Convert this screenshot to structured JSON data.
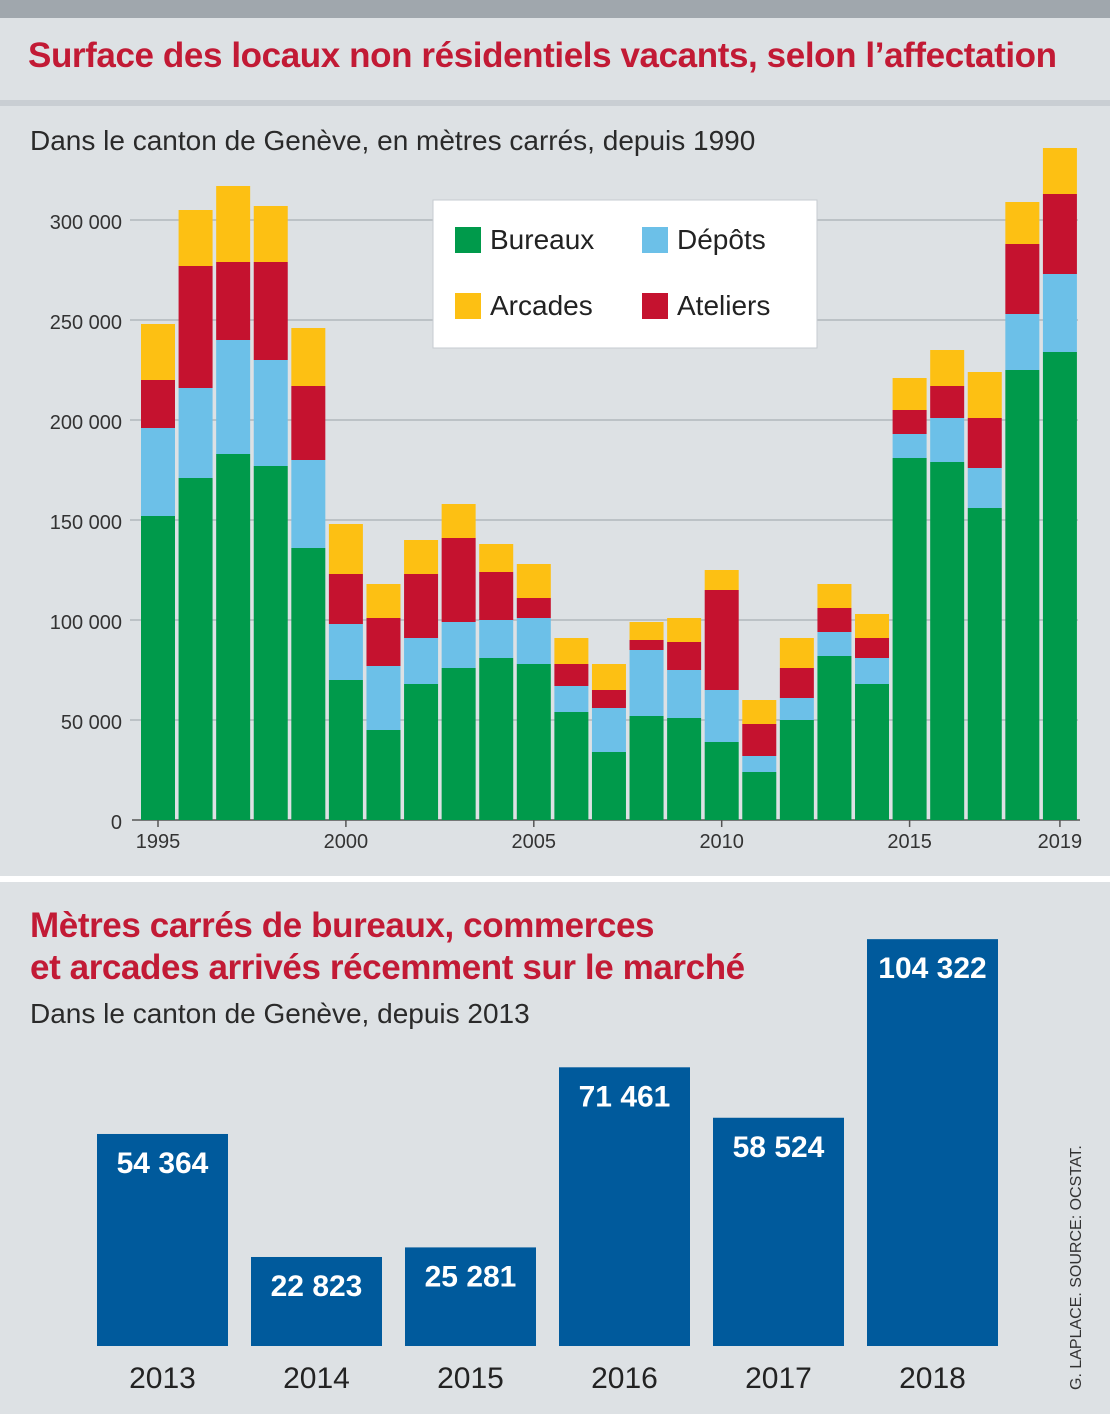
{
  "credit": "G. LAPLACE. SOURCE: OCSTAT.",
  "colors": {
    "bureaux": "#009a4b",
    "depots": "#6cc0e8",
    "arcades": "#fdc013",
    "ateliers": "#c5122f",
    "blue_bar": "#005a9c",
    "title": "#c21a35"
  },
  "chart_data": [
    {
      "type": "bar",
      "stacked": true,
      "title": "Surface des locaux non résidentiels vacants, selon l’affectation",
      "subtitle": "Dans le canton de Genève, en mètres carrés, depuis 1990",
      "xlabel": "",
      "ylabel": "",
      "ylim": [
        0,
        350000
      ],
      "yticks": [
        0,
        50000,
        100000,
        150000,
        200000,
        250000,
        300000
      ],
      "ytick_labels": [
        "0",
        "50 000",
        "100 000",
        "150 000",
        "200 000",
        "250 000",
        "300 000"
      ],
      "grid": true,
      "legend_position": "top-center",
      "categories": [
        1995,
        1996,
        1997,
        1998,
        1999,
        2000,
        2001,
        2002,
        2003,
        2004,
        2005,
        2006,
        2007,
        2008,
        2009,
        2010,
        2011,
        2012,
        2013,
        2014,
        2015,
        2016,
        2017,
        2018,
        2019
      ],
      "xtick_labels": [
        "1995",
        "2000",
        "2005",
        "2010",
        "2015",
        "2019"
      ],
      "xtick_years": [
        1995,
        2000,
        2005,
        2010,
        2015,
        2019
      ],
      "series": [
        {
          "name": "Bureaux",
          "color": "#009a4b",
          "values": [
            152000,
            171000,
            183000,
            177000,
            136000,
            70000,
            45000,
            68000,
            76000,
            81000,
            78000,
            54000,
            34000,
            52000,
            51000,
            39000,
            24000,
            50000,
            82000,
            68000,
            181000,
            179000,
            156000,
            225000,
            234000
          ]
        },
        {
          "name": "Dépôts",
          "color": "#6cc0e8",
          "values": [
            44000,
            45000,
            57000,
            53000,
            44000,
            28000,
            32000,
            23000,
            23000,
            19000,
            23000,
            13000,
            22000,
            33000,
            24000,
            26000,
            8000,
            11000,
            12000,
            13000,
            12000,
            22000,
            20000,
            28000,
            39000
          ]
        },
        {
          "name": "Ateliers",
          "color": "#c5122f",
          "values": [
            24000,
            61000,
            39000,
            49000,
            37000,
            25000,
            24000,
            32000,
            42000,
            24000,
            10000,
            11000,
            9000,
            5000,
            14000,
            50000,
            16000,
            15000,
            12000,
            10000,
            12000,
            16000,
            25000,
            35000,
            40000
          ]
        },
        {
          "name": "Arcades",
          "color": "#fdc013",
          "values": [
            28000,
            28000,
            38000,
            28000,
            29000,
            25000,
            17000,
            17000,
            17000,
            14000,
            17000,
            13000,
            13000,
            9000,
            12000,
            10000,
            12000,
            15000,
            12000,
            12000,
            16000,
            18000,
            23000,
            21000,
            23000
          ]
        }
      ]
    },
    {
      "type": "bar",
      "title": "Mètres carrés de bureaux, commerces et arcades arrivés récemment sur le marché",
      "title_lines": [
        "Mètres carrés de bureaux, commerces",
        "et arcades arrivés récemment sur le marché"
      ],
      "subtitle": "Dans le canton de Genève, depuis 2013",
      "xlabel": "",
      "ylabel": "",
      "categories": [
        "2013",
        "2014",
        "2015",
        "2016",
        "2017",
        "2018"
      ],
      "values": [
        54364,
        22823,
        25281,
        71461,
        58524,
        104322
      ],
      "value_labels": [
        "54 364",
        "22 823",
        "25 281",
        "71 461",
        "58 524",
        "104 322"
      ],
      "color": "#005a9c",
      "grid": false
    }
  ]
}
